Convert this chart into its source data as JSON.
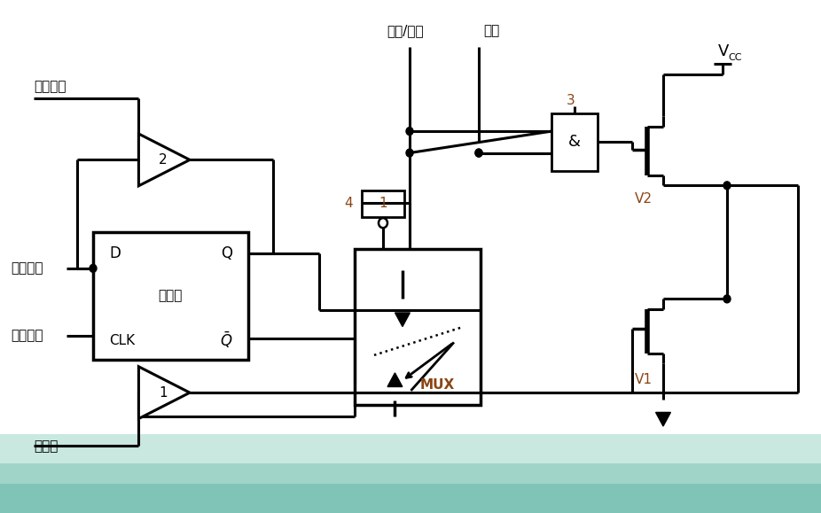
{
  "bg_color": "#e8f5f0",
  "line_color": "#000000",
  "text_color": "#000000",
  "accent_color": "#8B4513",
  "labels": {
    "read_latch": "读锁存器",
    "internal_bus": "内部总线",
    "write_latch": "写锁存器",
    "read_pin": "读引脚",
    "addr_data": "地址/数据",
    "control": "控制",
    "v1": "V1",
    "v2": "V2",
    "mux": "MUX",
    "latch": "锁存器",
    "D": "D",
    "Q": "Q",
    "CLK": "CLK",
    "amp2": "2",
    "amp1": "1",
    "gate3": "3",
    "gate4": "4",
    "gate1box": "1",
    "and_sym": "&"
  }
}
